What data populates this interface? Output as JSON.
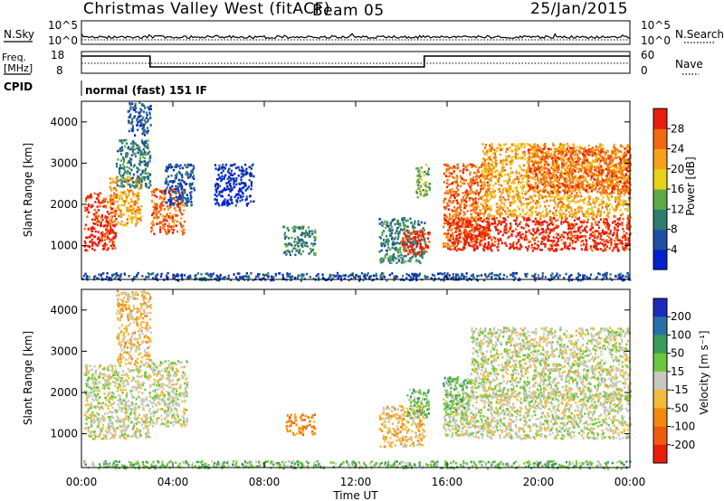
{
  "header": {
    "station": "Christmas Valley West (fitACF)",
    "beam": "Beam 05",
    "date": "25/Jan/2015"
  },
  "panels": {
    "nsky_label": "N.Sky",
    "nsearch_label": "N.Search",
    "freq_label_line1": "Freq.",
    "freq_label_line2": "[MHz]",
    "nave_label": "Nave",
    "cpid_label": "CPID",
    "cpid_value": "normal (fast) 151 IF",
    "noise_left_ticks": [
      "10^5",
      "10^0"
    ],
    "noise_right_ticks": [
      "10^5",
      "10^0"
    ],
    "freq_left_ticks": [
      "18",
      "8"
    ],
    "freq_right_ticks": [
      "60",
      "0"
    ]
  },
  "chart_data": [
    {
      "type": "heatmap",
      "quantity": "Power",
      "ylabel": "Slant Range [km]",
      "ylim": [
        180,
        4500
      ],
      "yticks": [
        "1000",
        "2000",
        "3000",
        "4000"
      ],
      "xlim": [
        "00:00",
        "24:00"
      ],
      "colorbar_label": "Power [dB]",
      "colorbar_ticks": [
        "4",
        "8",
        "12",
        "16",
        "20",
        "24",
        "28"
      ],
      "colorbar_colors": [
        "#0022cc",
        "#1f4fa0",
        "#2e7d6f",
        "#5fa84a",
        "#e8d21a",
        "#f7a21b",
        "#f26a10",
        "#e81d0c"
      ],
      "echoes": [
        {
          "t0": 0.1,
          "t1": 1.5,
          "r0": 900,
          "r1": 2300,
          "level": 7
        },
        {
          "t0": 1.2,
          "t1": 2.6,
          "r0": 1500,
          "r1": 2700,
          "level": 5
        },
        {
          "t0": 1.5,
          "t1": 3.0,
          "r0": 2400,
          "r1": 3600,
          "level": 2
        },
        {
          "t0": 2.0,
          "t1": 3.0,
          "r0": 3700,
          "r1": 4500,
          "level": 1
        },
        {
          "t0": 3.0,
          "t1": 4.5,
          "r0": 1300,
          "r1": 2400,
          "level": 6
        },
        {
          "t0": 3.6,
          "t1": 4.9,
          "r0": 2000,
          "r1": 3000,
          "level": 1
        },
        {
          "t0": 5.8,
          "t1": 7.5,
          "r0": 2000,
          "r1": 3000,
          "level": 0
        },
        {
          "t0": 8.8,
          "t1": 10.2,
          "r0": 800,
          "r1": 1500,
          "level": 2
        },
        {
          "t0": 13.0,
          "t1": 15.0,
          "r0": 600,
          "r1": 1700,
          "level": 2
        },
        {
          "t0": 14.0,
          "t1": 15.2,
          "r0": 800,
          "r1": 1400,
          "level": 7
        },
        {
          "t0": 14.6,
          "t1": 15.2,
          "r0": 2200,
          "r1": 3000,
          "level": 3
        },
        {
          "t0": 15.8,
          "t1": 17.8,
          "r0": 1000,
          "r1": 3000,
          "level": 6
        },
        {
          "t0": 16.0,
          "t1": 24.0,
          "r0": 900,
          "r1": 1700,
          "level": 7
        },
        {
          "t0": 17.5,
          "t1": 24.0,
          "r0": 1700,
          "r1": 3500,
          "level": 5
        },
        {
          "t0": 19.5,
          "t1": 24.0,
          "r0": 2300,
          "r1": 3400,
          "level": 6
        },
        {
          "t0": 0.0,
          "t1": 24.0,
          "r0": 180,
          "r1": 360,
          "level": 1
        }
      ]
    },
    {
      "type": "heatmap",
      "quantity": "Velocity",
      "ylabel": "Slant Range [km]",
      "xlabel": "Time UT",
      "ylim": [
        180,
        4500
      ],
      "yticks": [
        "1000",
        "2000",
        "3000",
        "4000"
      ],
      "xticks": [
        "00:00",
        "04:00",
        "08:00",
        "12:00",
        "16:00",
        "20:00",
        "00:00"
      ],
      "colorbar_label": "Velocity [m s⁻¹]",
      "colorbar_ticks": [
        "200",
        "100",
        "50",
        "15",
        "-15",
        "-50",
        "-100",
        "-200"
      ],
      "colorbar_colors": [
        "#1a2db8",
        "#2a6fa8",
        "#3a9a5a",
        "#6cc83a",
        "#c8c8c0",
        "#f2bc3a",
        "#f28a10",
        "#f25a10",
        "#e81d0c"
      ],
      "echoes": [
        {
          "t0": 0.1,
          "t1": 3.0,
          "r0": 900,
          "r1": 2700,
          "level": 4
        },
        {
          "t0": 1.5,
          "t1": 3.0,
          "r0": 2700,
          "r1": 4500,
          "level": 5
        },
        {
          "t0": 3.0,
          "t1": 4.6,
          "r0": 1200,
          "r1": 2800,
          "level": 4
        },
        {
          "t0": 8.9,
          "t1": 10.2,
          "r0": 1000,
          "r1": 1500,
          "level": 6
        },
        {
          "t0": 13.0,
          "t1": 15.0,
          "r0": 700,
          "r1": 1700,
          "level": 5
        },
        {
          "t0": 14.2,
          "t1": 15.2,
          "r0": 1400,
          "r1": 2100,
          "level": 3
        },
        {
          "t0": 15.8,
          "t1": 24.0,
          "r0": 900,
          "r1": 2000,
          "level": 4
        },
        {
          "t0": 17.0,
          "t1": 24.0,
          "r0": 1900,
          "r1": 3600,
          "level": 4
        },
        {
          "t0": 15.8,
          "t1": 17.0,
          "r0": 1600,
          "r1": 2400,
          "level": 3
        },
        {
          "t0": 0.0,
          "t1": 24.0,
          "r0": 180,
          "r1": 360,
          "level": 3
        }
      ]
    }
  ]
}
